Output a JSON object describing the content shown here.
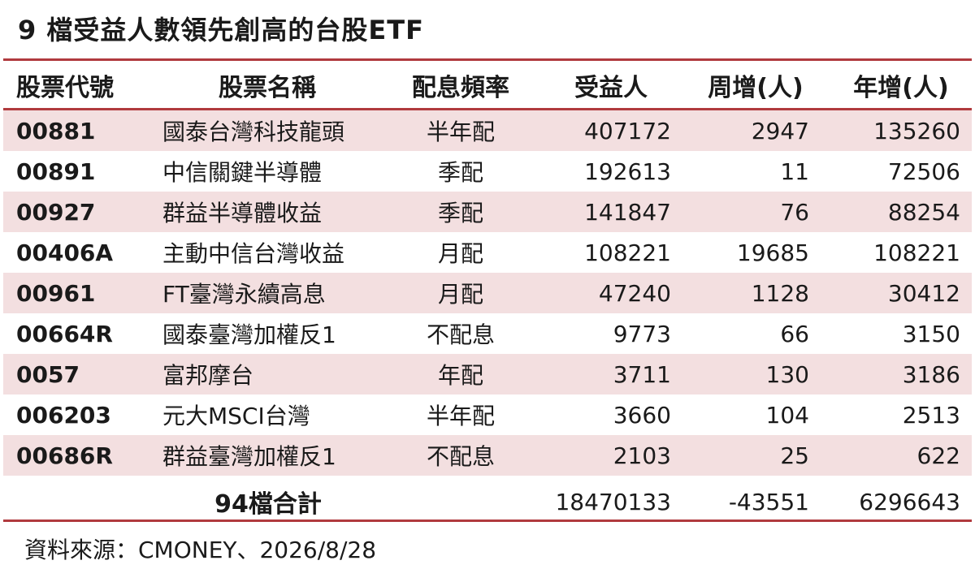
{
  "title": "9 檔受益人數領先創高的台股ETF",
  "headers": {
    "code": "股票代號",
    "name": "股票名稱",
    "freq": "配息頻率",
    "holders": "受益人",
    "week": "周增(人)",
    "year": "年增(人)"
  },
  "rows": [
    {
      "code": "00881",
      "name": "國泰台灣科技龍頭",
      "freq": "半年配",
      "holders": "407172",
      "week": "2947",
      "year": "135260"
    },
    {
      "code": "00891",
      "name": "中信關鍵半導體",
      "freq": "季配",
      "holders": "192613",
      "week": "11",
      "year": "72506"
    },
    {
      "code": "00927",
      "name": "群益半導體收益",
      "freq": "季配",
      "holders": "141847",
      "week": "76",
      "year": "88254"
    },
    {
      "code": "00406A",
      "name": "主動中信台灣收益",
      "freq": "月配",
      "holders": "108221",
      "week": "19685",
      "year": "108221"
    },
    {
      "code": "00961",
      "name": "FT臺灣永續高息",
      "freq": "月配",
      "holders": "47240",
      "week": "1128",
      "year": "30412"
    },
    {
      "code": "00664R",
      "name": "國泰臺灣加權反1",
      "freq": "不配息",
      "holders": "9773",
      "week": "66",
      "year": "3150"
    },
    {
      "code": "0057",
      "name": "富邦摩台",
      "freq": "年配",
      "holders": "3711",
      "week": "130",
      "year": "3186"
    },
    {
      "code": "006203",
      "name": "元大MSCI台灣",
      "freq": "半年配",
      "holders": "3660",
      "week": "104",
      "year": "2513"
    },
    {
      "code": "00686R",
      "name": "群益臺灣加權反1",
      "freq": "不配息",
      "holders": "2103",
      "week": "25",
      "year": "622"
    }
  ],
  "total": {
    "label": "94檔合計",
    "holders": "18470133",
    "week": "-43551",
    "year": "6296643"
  },
  "source": "資料來源：CMONEY、2026/8/28",
  "colors": {
    "rule": "#b03a3e",
    "shaded_row": "#f3dfe0"
  }
}
